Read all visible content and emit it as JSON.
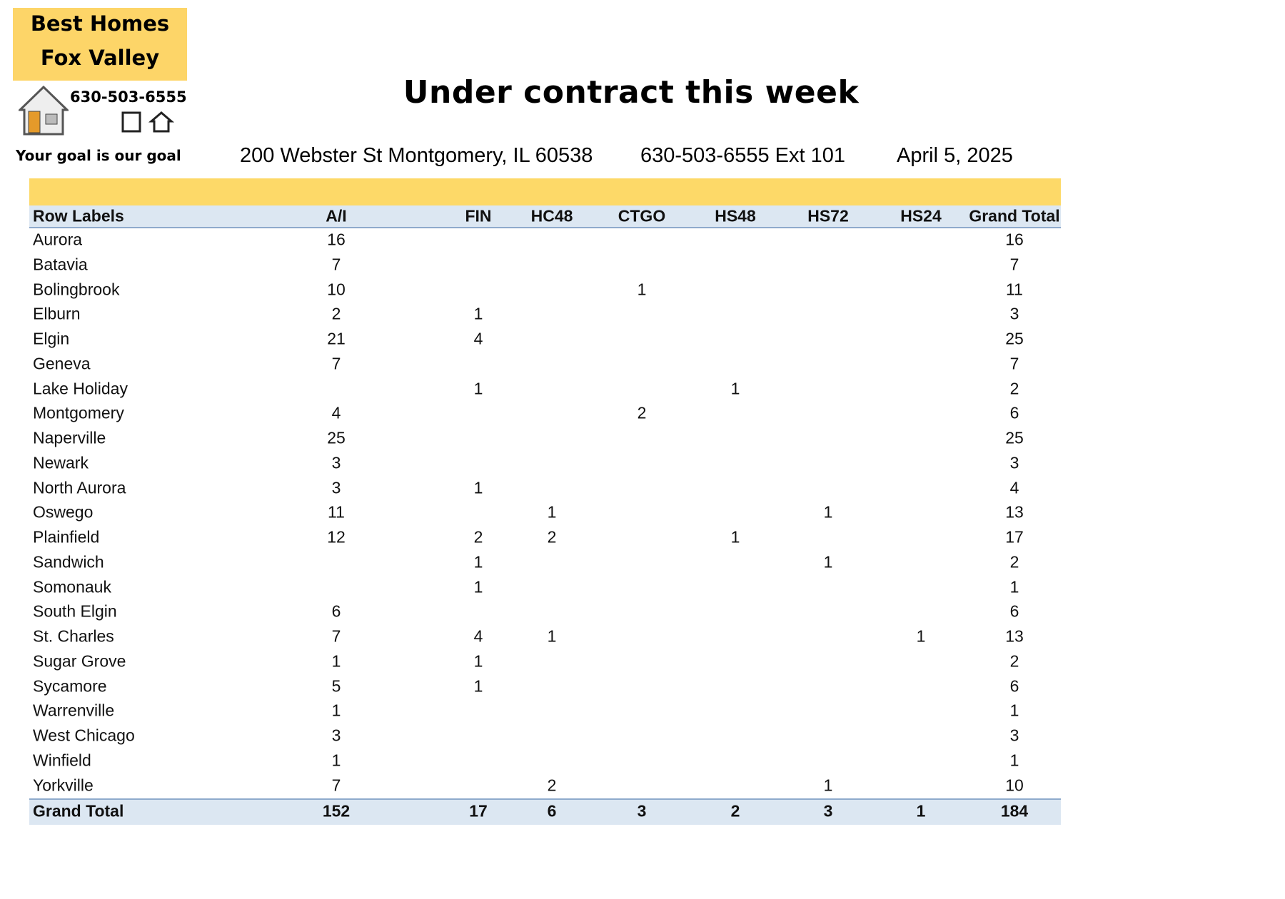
{
  "logo": {
    "line1": "Best Homes",
    "line2": "Fox Valley",
    "phone": "630-503-6555",
    "tagline": "Your goal is our goal"
  },
  "title": "Under contract this week",
  "address": "200 Webster St Montgomery, IL 60538",
  "phone": "630-503-6555 Ext 101",
  "date": "April 5, 2025",
  "table": {
    "header": [
      "Row Labels",
      "A/I",
      "FIN",
      "HC48",
      "CTGO",
      "HS48",
      "HS72",
      "HS24",
      "Grand Total"
    ],
    "rows": [
      [
        "Aurora",
        16,
        null,
        null,
        null,
        null,
        null,
        null,
        16
      ],
      [
        "Batavia",
        7,
        null,
        null,
        null,
        null,
        null,
        null,
        7
      ],
      [
        "Bolingbrook",
        10,
        null,
        null,
        1,
        null,
        null,
        null,
        11
      ],
      [
        "Elburn",
        2,
        1,
        null,
        null,
        null,
        null,
        null,
        3
      ],
      [
        "Elgin",
        21,
        4,
        null,
        null,
        null,
        null,
        null,
        25
      ],
      [
        "Geneva",
        7,
        null,
        null,
        null,
        null,
        null,
        null,
        7
      ],
      [
        "Lake Holiday",
        null,
        1,
        null,
        null,
        1,
        null,
        null,
        2
      ],
      [
        "Montgomery",
        4,
        null,
        null,
        2,
        null,
        null,
        null,
        6
      ],
      [
        "Naperville",
        25,
        null,
        null,
        null,
        null,
        null,
        null,
        25
      ],
      [
        "Newark",
        3,
        null,
        null,
        null,
        null,
        null,
        null,
        3
      ],
      [
        "North Aurora",
        3,
        1,
        null,
        null,
        null,
        null,
        null,
        4
      ],
      [
        "Oswego",
        11,
        null,
        1,
        null,
        null,
        1,
        null,
        13
      ],
      [
        "Plainfield",
        12,
        2,
        2,
        null,
        1,
        null,
        null,
        17
      ],
      [
        "Sandwich",
        null,
        1,
        null,
        null,
        null,
        1,
        null,
        2
      ],
      [
        "Somonauk",
        null,
        1,
        null,
        null,
        null,
        null,
        null,
        1
      ],
      [
        "South Elgin",
        6,
        null,
        null,
        null,
        null,
        null,
        null,
        6
      ],
      [
        "St. Charles",
        7,
        4,
        1,
        null,
        null,
        null,
        1,
        13
      ],
      [
        "Sugar Grove",
        1,
        1,
        null,
        null,
        null,
        null,
        null,
        2
      ],
      [
        "Sycamore",
        5,
        1,
        null,
        null,
        null,
        null,
        null,
        6
      ],
      [
        "Warrenville",
        1,
        null,
        null,
        null,
        null,
        null,
        null,
        1
      ],
      [
        "West Chicago",
        3,
        null,
        null,
        null,
        null,
        null,
        null,
        3
      ],
      [
        "Winfield",
        1,
        null,
        null,
        null,
        null,
        null,
        null,
        1
      ],
      [
        "Yorkville",
        7,
        null,
        2,
        null,
        null,
        1,
        null,
        10
      ]
    ],
    "total": [
      "Grand Total",
      152,
      17,
      6,
      3,
      2,
      3,
      1,
      184
    ]
  }
}
